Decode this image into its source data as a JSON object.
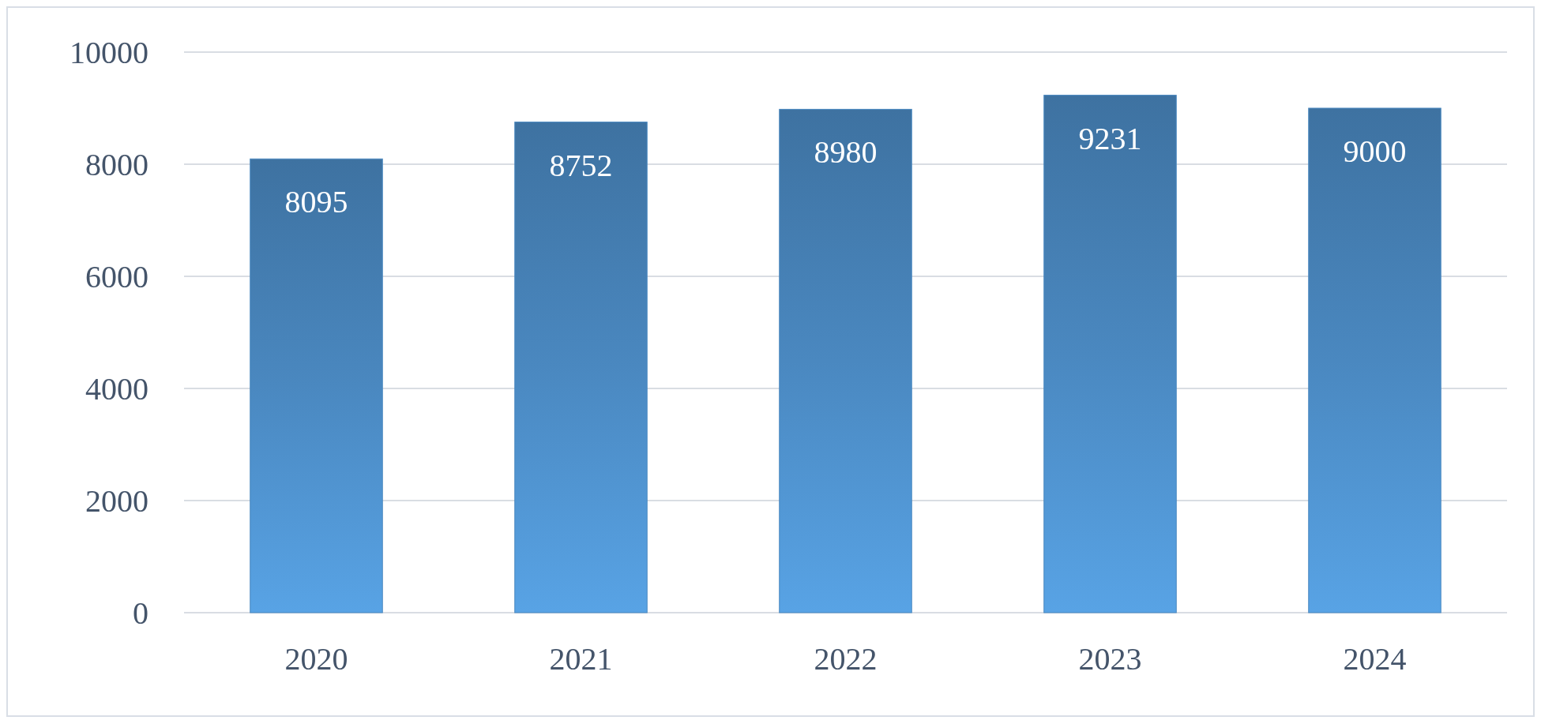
{
  "chart_data": {
    "type": "bar",
    "categories": [
      "2020",
      "2021",
      "2022",
      "2023",
      "2024"
    ],
    "values": [
      8095,
      8752,
      8980,
      9231,
      9000
    ],
    "color": "#4a88c0",
    "ylim": [
      0,
      10000
    ],
    "yticks": [
      0,
      2000,
      4000,
      6000,
      8000,
      10000
    ],
    "grid": "y",
    "data_labels": true
  }
}
